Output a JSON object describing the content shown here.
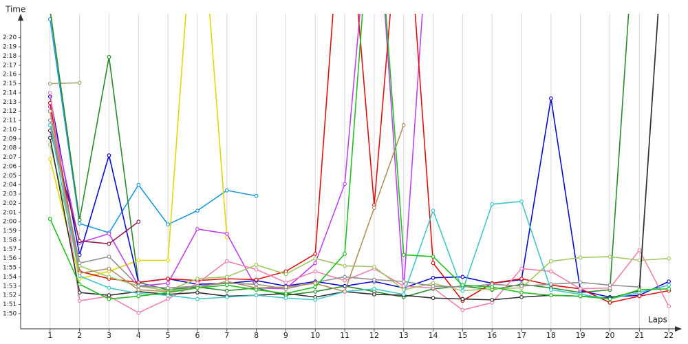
{
  "chart_data": {
    "type": "line",
    "y_label": "Time",
    "x_label": "Laps",
    "xlim": [
      0,
      22.3
    ],
    "ylim": [
      108.35,
      142
    ],
    "xticks": [
      1,
      2,
      3,
      4,
      5,
      6,
      7,
      8,
      9,
      10,
      11,
      12,
      13,
      14,
      15,
      16,
      17,
      18,
      19,
      20,
      21,
      22
    ],
    "yticks": [
      {
        "value": 110,
        "label": "1:50"
      },
      {
        "value": 111,
        "label": "1:51"
      },
      {
        "value": 112,
        "label": "1:52"
      },
      {
        "value": 113,
        "label": "1:53"
      },
      {
        "value": 114,
        "label": "1:54"
      },
      {
        "value": 115,
        "label": "1:55"
      },
      {
        "value": 116,
        "label": "1:56"
      },
      {
        "value": 117,
        "label": "1:57"
      },
      {
        "value": 118,
        "label": "1:58"
      },
      {
        "value": 119,
        "label": "1:59"
      },
      {
        "value": 120,
        "label": "2:00"
      },
      {
        "value": 121,
        "label": "2:01"
      },
      {
        "value": 122,
        "label": "2:02"
      },
      {
        "value": 123,
        "label": "2:03"
      },
      {
        "value": 124,
        "label": "2:04"
      },
      {
        "value": 125,
        "label": "2:05"
      },
      {
        "value": 126,
        "label": "2:06"
      },
      {
        "value": 127,
        "label": "2:07"
      },
      {
        "value": 128,
        "label": "2:08"
      },
      {
        "value": 129,
        "label": "2:09"
      },
      {
        "value": 130,
        "label": "2:10"
      },
      {
        "value": 131,
        "label": "2:11"
      },
      {
        "value": 132,
        "label": "2:12"
      },
      {
        "value": 133,
        "label": "2:13"
      },
      {
        "value": 134,
        "label": "2:14"
      },
      {
        "value": 135,
        "label": "2:15"
      },
      {
        "value": 136,
        "label": "2:16"
      },
      {
        "value": 137,
        "label": "2:17"
      },
      {
        "value": 138,
        "label": "2:18"
      },
      {
        "value": 139,
        "label": "2:19"
      },
      {
        "value": 140,
        "label": "2:20"
      }
    ],
    "grid": true,
    "x": [
      1,
      2,
      3,
      4,
      5,
      6,
      7,
      8,
      9,
      10,
      11,
      12,
      13,
      14,
      15,
      16,
      17,
      18,
      19,
      20,
      21,
      22
    ],
    "series": [
      {
        "color": "#1e9be0",
        "values": [
          142.0,
          119.8,
          118.8,
          124.0,
          119.7,
          121.2,
          123.4,
          122.8,
          null,
          null,
          null,
          null,
          null,
          null,
          null,
          null,
          null,
          null,
          null,
          null,
          null,
          null
        ]
      },
      {
        "color": "#9aaa7a",
        "values": [
          135.0,
          135.1,
          null,
          null,
          null,
          null,
          null,
          null,
          null,
          null,
          null,
          null,
          null,
          null,
          null,
          null,
          null,
          null,
          null,
          null,
          null,
          null
        ]
      },
      {
        "color": "#2a8a2a",
        "values": [
          143,
          120.2,
          137.9,
          113.4,
          112.6,
          112.9,
          112.5,
          112.8,
          112.0,
          112.4,
          113.0,
          112.4,
          111.8,
          112.7,
          113.0,
          112.6,
          113.2,
          112.8,
          112.3,
          112.6,
          160,
          null
        ]
      },
      {
        "color": "#e0d800",
        "values": [
          126.8,
          113.8,
          114.6,
          115.8,
          115.8,
          160,
          118.3,
          null,
          null,
          null,
          null,
          null,
          null,
          null,
          null,
          null,
          null,
          null,
          null,
          null,
          null,
          null
        ]
      },
      {
        "color": "#0a0ad0",
        "values": [
          133.6,
          116.4,
          127.2,
          113.4,
          113.8,
          113.2,
          113.3,
          113.6,
          113.0,
          113.5,
          113.0,
          113.5,
          112.8,
          113.9,
          114.0,
          113.3,
          113.7,
          133.4,
          112.5,
          111.8,
          112.0,
          113.5
        ]
      },
      {
        "color": "#c040f0",
        "values": [
          132.5,
          117.7,
          118.7,
          113.0,
          113.3,
          119.2,
          118.7,
          112.8,
          112.7,
          115.5,
          124.1,
          160,
          112.7,
          160,
          null,
          null,
          null,
          null,
          null,
          null,
          null,
          null
        ]
      },
      {
        "color": "#e01010",
        "values": [
          132.9,
          114.6,
          113.8,
          113.4,
          113.8,
          113.6,
          113.8,
          113.7,
          114.6,
          116.5,
          160,
          121.8,
          160,
          115.5,
          111.4,
          113.3,
          113.8,
          113.1,
          112.7,
          111.2,
          111.9,
          112.5
        ]
      },
      {
        "color": "#f080b0",
        "values": [
          134.0,
          111.4,
          111.9,
          110.1,
          111.6,
          113.3,
          115.7,
          114.8,
          113.4,
          114.6,
          113.6,
          114.9,
          113.0,
          112.8,
          110.4,
          111.2,
          114.9,
          114.6,
          112.7,
          112.8,
          116.9,
          110.8
        ]
      },
      {
        "color": "#8b2252",
        "values": [
          129.9,
          117.9,
          117.6,
          120.0,
          null,
          null,
          null,
          null,
          null,
          null,
          null,
          null,
          null,
          null,
          null,
          null,
          null,
          null,
          null,
          null,
          null,
          null
        ]
      },
      {
        "color": "#a0c860",
        "values": [
          128.4,
          115.2,
          114.0,
          113.0,
          112.5,
          113.8,
          114.0,
          115.3,
          114.3,
          116.0,
          115.2,
          115.1,
          112.6,
          113.3,
          112.5,
          112.7,
          112.8,
          115.7,
          116.1,
          116.2,
          115.8,
          116.0
        ]
      },
      {
        "color": "#909090",
        "values": [
          131.0,
          115.5,
          116.2,
          113.0,
          112.8,
          113.0,
          113.3,
          113.2,
          112.7,
          113.4,
          114.0,
          113.7,
          113.5,
          113.0,
          112.9,
          113.2,
          113.0,
          113.2,
          113.4,
          113.1,
          112.9,
          160
        ]
      },
      {
        "color": "#303030",
        "values": [
          129.1,
          112.3,
          112.0,
          112.4,
          112.1,
          112.3,
          111.9,
          112.0,
          112.2,
          111.8,
          112.4,
          112.1,
          112.0,
          111.7,
          111.6,
          111.5,
          111.8,
          112.0,
          111.9,
          111.7,
          112.5,
          160
        ]
      },
      {
        "color": "#40c8c8",
        "values": [
          130.5,
          114.1,
          112.8,
          112.2,
          112.0,
          111.6,
          111.8,
          112.0,
          111.7,
          111.5,
          112.4,
          112.7,
          112.1,
          121.2,
          112.5,
          121.9,
          122.2,
          112.6,
          112.1,
          111.6,
          112.3,
          113.1
        ]
      },
      {
        "color": "#b09060",
        "values": [
          132.0,
          114.4,
          114.9,
          112.6,
          112.4,
          112.8,
          113.5,
          112.8,
          112.9,
          113.3,
          112.4,
          121.5,
          130.5,
          null,
          null,
          null,
          null,
          null,
          null,
          null,
          null,
          null
        ]
      },
      {
        "color": "#20c020",
        "values": [
          120.3,
          113.2,
          111.6,
          111.9,
          112.3,
          112.8,
          113.1,
          112.6,
          112.2,
          112.9,
          116.5,
          160,
          116.4,
          116.2,
          113.1,
          112.9,
          112.3,
          112.0,
          111.9,
          111.6,
          112.6,
          112.7
        ]
      }
    ]
  }
}
